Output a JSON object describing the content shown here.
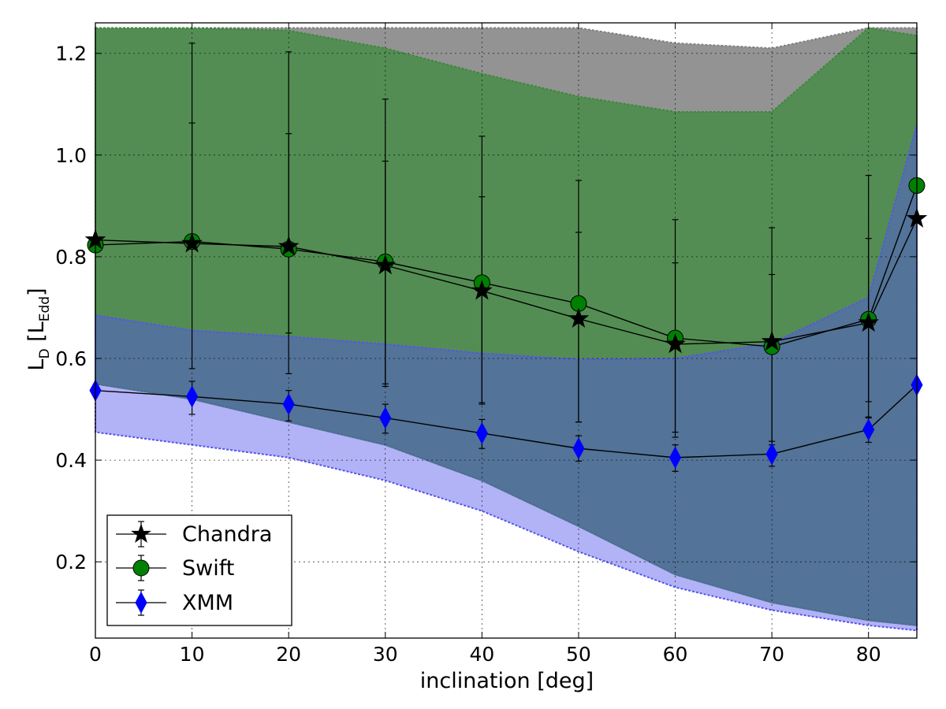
{
  "chart_data": {
    "type": "line",
    "xlabel": "inclination [deg]",
    "ylabel": {
      "main": "L",
      "main_sub": "D",
      "bracket_main": "L",
      "bracket_sub": "Edd"
    },
    "xlim": [
      0,
      85
    ],
    "ylim": [
      0.05,
      1.26
    ],
    "xticks": [
      0,
      10,
      20,
      30,
      40,
      50,
      60,
      70,
      80
    ],
    "yticks": [
      0.2,
      0.4,
      0.6,
      0.8,
      1.0,
      1.2
    ],
    "ytick_labels": [
      "0.2",
      "0.4",
      "0.6",
      "0.8",
      "1.0",
      "1.2"
    ],
    "grid": true,
    "legend_position": "lower-left",
    "x": [
      0,
      10,
      20,
      30,
      40,
      50,
      60,
      70,
      80,
      85
    ],
    "bands": [
      {
        "name": "Chandra range",
        "color": "#808080",
        "opacity": 0.85,
        "upper": [
          1.25,
          1.25,
          1.25,
          1.25,
          1.25,
          1.25,
          1.22,
          1.21,
          1.25,
          1.25
        ],
        "lower": [
          0.55,
          0.52,
          0.475,
          0.43,
          0.36,
          0.27,
          0.175,
          0.12,
          0.085,
          0.075
        ]
      },
      {
        "name": "Swift range",
        "color": "#3a8a3a",
        "opacity": 0.72,
        "upper": [
          1.25,
          1.25,
          1.245,
          1.21,
          1.16,
          1.115,
          1.085,
          1.085,
          1.25,
          1.235
        ],
        "lower": [
          0.55,
          0.52,
          0.475,
          0.43,
          0.36,
          0.27,
          0.175,
          0.12,
          0.085,
          0.075
        ]
      },
      {
        "name": "XMM range",
        "color": "#5555ee",
        "opacity": 0.45,
        "upper": [
          0.685,
          0.655,
          0.643,
          0.628,
          0.61,
          0.598,
          0.6,
          0.63,
          0.72,
          1.06
        ],
        "lower": [
          0.455,
          0.43,
          0.405,
          0.36,
          0.3,
          0.22,
          0.15,
          0.105,
          0.075,
          0.065
        ]
      }
    ],
    "series": [
      {
        "name": "Chandra",
        "marker": "star",
        "color": "#000000",
        "values": [
          0.833,
          0.826,
          0.82,
          0.783,
          0.733,
          0.678,
          0.628,
          0.633,
          0.67,
          0.875
        ],
        "err_low": [
          0.833,
          0.826,
          0.65,
          0.545,
          0.513,
          0.475,
          0.445,
          0.408,
          0.483,
          0.875
        ],
        "err_high": [
          0.833,
          1.22,
          1.203,
          1.11,
          1.037,
          0.95,
          0.873,
          0.857,
          0.96,
          0.875
        ]
      },
      {
        "name": "Swift",
        "marker": "circle",
        "color": "#008000",
        "values": [
          0.823,
          0.83,
          0.815,
          0.79,
          0.749,
          0.708,
          0.64,
          0.623,
          0.677,
          0.94
        ],
        "err_low": [
          0.823,
          0.58,
          0.57,
          0.55,
          0.51,
          0.475,
          0.455,
          0.43,
          0.515,
          0.94
        ],
        "err_high": [
          0.823,
          1.063,
          1.042,
          0.988,
          0.918,
          0.848,
          0.788,
          0.765,
          0.836,
          0.94
        ]
      },
      {
        "name": "XMM",
        "marker": "diamond",
        "color": "#0000ff",
        "values": [
          0.537,
          0.525,
          0.51,
          0.483,
          0.453,
          0.423,
          0.405,
          0.412,
          0.46,
          0.548
        ],
        "err_low": [
          0.537,
          0.49,
          0.477,
          0.453,
          0.423,
          0.398,
          0.378,
          0.388,
          0.435,
          0.548
        ],
        "err_high": [
          0.537,
          0.555,
          0.537,
          0.51,
          0.48,
          0.448,
          0.43,
          0.437,
          0.485,
          0.548
        ]
      }
    ]
  }
}
